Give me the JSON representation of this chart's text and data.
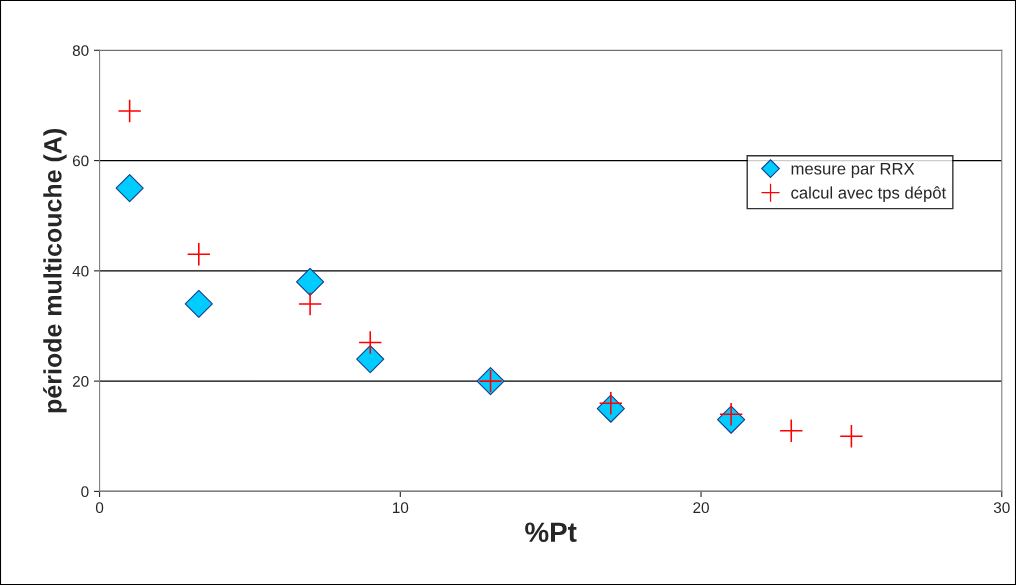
{
  "chart_data": {
    "type": "scatter",
    "xlabel": "%Pt",
    "ylabel": "période multicouche (A)",
    "xlim": [
      0,
      30
    ],
    "xticks": [
      0,
      10,
      20,
      30
    ],
    "ylim": [
      0,
      80
    ],
    "yticks": [
      0,
      20,
      40,
      60,
      80
    ],
    "grid": "y",
    "legend": "top right",
    "series": [
      {
        "name": "mesure par RRX",
        "color": "#00ccff",
        "marker": "diamond",
        "x": [
          1,
          3.3,
          7,
          9,
          13,
          17,
          21
        ],
        "values": [
          55,
          34,
          38,
          24,
          20,
          15,
          13
        ]
      },
      {
        "name": "calcul avec tps dépôt",
        "color": "#ff0000",
        "marker": "cross",
        "x": [
          1,
          3.3,
          7,
          9,
          13,
          17,
          21,
          23,
          25
        ],
        "values": [
          69,
          43,
          34,
          27,
          20,
          16,
          14,
          11,
          10
        ]
      }
    ]
  }
}
